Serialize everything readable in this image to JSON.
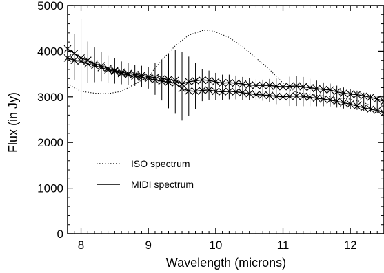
{
  "chart_data": {
    "type": "line",
    "title": "",
    "xlabel": "Wavelength (microns)",
    "ylabel": "Flux (in Jy)",
    "xlim": [
      7.8,
      12.5
    ],
    "ylim": [
      0,
      5000
    ],
    "x_ticks": [
      "8",
      "9",
      "10",
      "11",
      "12"
    ],
    "y_ticks": [
      "0",
      "1000",
      "2000",
      "3000",
      "4000",
      "5000"
    ],
    "grid": false,
    "legend_position": "lower-left",
    "series": [
      {
        "name": "ISO spectrum",
        "style": "dotted",
        "x": [
          7.8,
          8.0,
          8.2,
          8.4,
          8.6,
          8.8,
          9.0,
          9.2,
          9.4,
          9.6,
          9.8,
          9.9,
          10.0,
          10.2,
          10.4,
          10.6,
          10.8,
          11.0,
          11.1,
          11.2,
          11.4,
          11.6,
          11.8,
          12.0,
          12.2,
          12.5
        ],
        "y": [
          3280,
          3120,
          3080,
          3070,
          3120,
          3280,
          3450,
          3800,
          4120,
          4350,
          4450,
          4460,
          4420,
          4300,
          4100,
          3850,
          3600,
          3300,
          3150,
          3100,
          3050,
          3020,
          2980,
          2950,
          2880,
          2650
        ]
      },
      {
        "name": "MIDI spectrum",
        "style": "solid-with-x-markers",
        "x": [
          7.8,
          7.9,
          8.0,
          8.1,
          8.2,
          8.3,
          8.4,
          8.5,
          8.6,
          8.7,
          8.8,
          8.9,
          9.0,
          9.1,
          9.2,
          9.3,
          9.4,
          9.5,
          9.6,
          9.7,
          9.8,
          9.9,
          10.0,
          10.1,
          10.2,
          10.3,
          10.4,
          10.5,
          10.6,
          10.7,
          10.8,
          10.9,
          11.0,
          11.1,
          11.2,
          11.3,
          11.4,
          11.5,
          11.6,
          11.7,
          11.8,
          11.9,
          12.0,
          12.1,
          12.2,
          12.3,
          12.4,
          12.5
        ],
        "y_upper": [
          4050,
          3950,
          3850,
          3800,
          3720,
          3680,
          3620,
          3580,
          3540,
          3510,
          3490,
          3470,
          3440,
          3420,
          3400,
          3380,
          3360,
          3280,
          3330,
          3350,
          3370,
          3360,
          3330,
          3300,
          3310,
          3300,
          3280,
          3260,
          3250,
          3250,
          3250,
          3230,
          3220,
          3230,
          3240,
          3220,
          3200,
          3180,
          3160,
          3150,
          3110,
          3080,
          3060,
          3050,
          3020,
          2990,
          2950,
          2900
        ],
        "y_lower": [
          3850,
          3800,
          3780,
          3720,
          3680,
          3640,
          3590,
          3560,
          3510,
          3480,
          3450,
          3430,
          3400,
          3370,
          3340,
          3320,
          3300,
          3180,
          3130,
          3120,
          3140,
          3150,
          3120,
          3110,
          3120,
          3110,
          3090,
          3070,
          3050,
          3040,
          3030,
          3010,
          3000,
          3010,
          3020,
          3010,
          2990,
          2970,
          2950,
          2930,
          2900,
          2870,
          2840,
          2800,
          2760,
          2730,
          2700,
          2650
        ],
        "error": [
          550,
          500,
          900,
          450,
          380,
          320,
          300,
          280,
          250,
          240,
          230,
          230,
          240,
          350,
          450,
          600,
          700,
          750,
          650,
          500,
          350,
          320,
          300,
          280,
          270,
          260,
          250,
          240,
          230,
          230,
          250,
          280,
          300,
          320,
          330,
          320,
          300,
          280,
          260,
          250,
          240,
          230,
          220,
          210,
          200,
          190,
          180,
          170
        ]
      }
    ]
  }
}
